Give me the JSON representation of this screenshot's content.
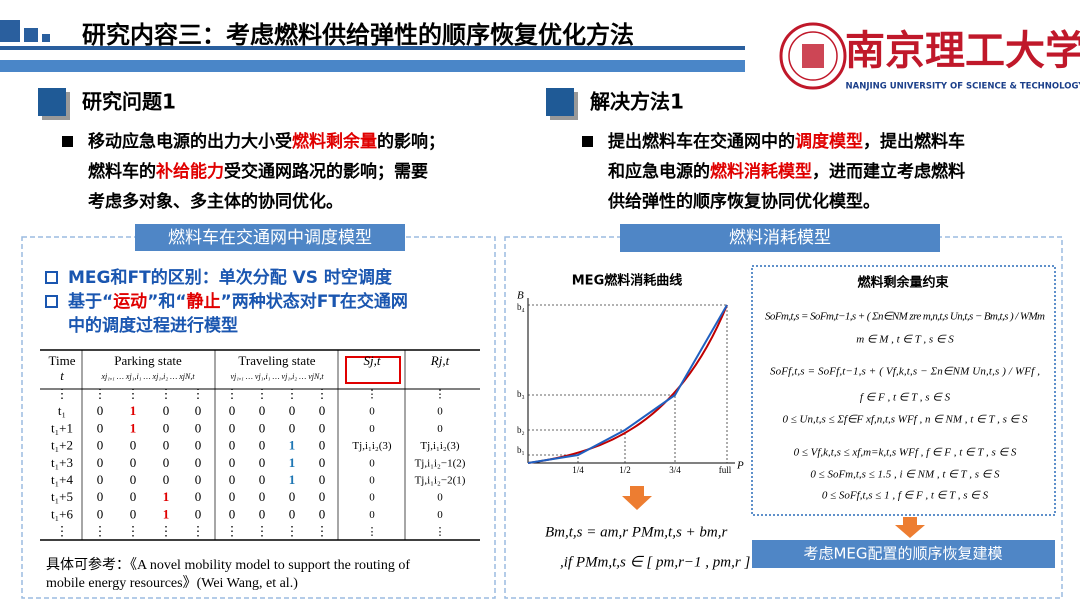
{
  "header": {
    "title": "研究内容三：考虑燃料供给弹性的顺序恢复优化方法",
    "university": "南京理工大学",
    "university_en": "NANJING UNIVERSITY OF SCIENCE & TECHNOLOGY"
  },
  "left": {
    "heading": "研究问题1",
    "bullet": [
      [
        {
          "text": "移动应急电源的出力大小受"
        },
        {
          "text": "燃料剩余量",
          "highlight": true
        },
        {
          "text": "的影响；"
        }
      ],
      [
        {
          "text": "燃料车的"
        },
        {
          "text": "补给能力",
          "highlight": true
        },
        {
          "text": "受交通网路况的影响；需要"
        }
      ],
      [
        {
          "text": "考虑多对象、多主体的协同优化。"
        }
      ]
    ],
    "panel_title": "燃料车在交通网中调度模型",
    "points": [
      [
        [
          {
            "text": "MEG和FT的区别：单次分配 VS 时空调度"
          }
        ]
      ],
      [
        [
          {
            "text": "基于“"
          },
          {
            "text": "运动",
            "highlight": true
          },
          {
            "text": "”和“"
          },
          {
            "text": "静止",
            "highlight": true
          },
          {
            "text": "”两种状态对FT在交通网"
          }
        ],
        [
          {
            "text": "中的调度过程进行模型"
          }
        ]
      ]
    ],
    "table": {
      "headers": [
        "Time",
        "Parking state",
        "Traveling state",
        "Sj,t",
        "Rj,t"
      ],
      "subheaders": [
        "t",
        "xj₁,₁ … xj₁,i₁ … xj₁,i₂ … xjN,t",
        "vj₁,₁ … vj₁,i₁ … vj₁,i₂ … vjN,t"
      ],
      "rows": [
        [
          "⋮",
          "⋮",
          "⋮",
          "⋮",
          "⋮",
          "⋮",
          "⋮",
          "⋮",
          "⋮",
          "⋮",
          "⋮"
        ],
        [
          "t₁",
          "0",
          {
            "text": "1",
            "color": "#e00000"
          },
          "0",
          "0",
          "0",
          "0",
          "0",
          "0",
          "0",
          "0"
        ],
        [
          "t₁+1",
          "0",
          {
            "text": "1",
            "color": "#e00000"
          },
          "0",
          "0",
          "0",
          "0",
          "0",
          "0",
          "0",
          "0"
        ],
        [
          "t₁+2",
          "0",
          "0",
          "0",
          "0",
          "0",
          "0",
          {
            "text": "1",
            "color": "#1f77b4"
          },
          "0",
          "Tj,i₁i₂(3)",
          "Tj,i₁i₂(3)"
        ],
        [
          "t₁+3",
          "0",
          "0",
          "0",
          "0",
          "0",
          "0",
          {
            "text": "1",
            "color": "#1f77b4"
          },
          "0",
          "0",
          "Tj,i₁i₂−1(2)"
        ],
        [
          "t₁+4",
          "0",
          "0",
          "0",
          "0",
          "0",
          "0",
          {
            "text": "1",
            "color": "#1f77b4"
          },
          "0",
          "0",
          "Tj,i₁i₂−2(1)"
        ],
        [
          "t₁+5",
          "0",
          "0",
          {
            "text": "1",
            "color": "#e00000"
          },
          "0",
          "0",
          "0",
          "0",
          "0",
          "0",
          "0"
        ],
        [
          "t₁+6",
          "0",
          "0",
          {
            "text": "1",
            "color": "#e00000"
          },
          "0",
          "0",
          "0",
          "0",
          "0",
          "0",
          "0"
        ],
        [
          "⋮",
          "⋮",
          "⋮",
          "⋮",
          "⋮",
          "⋮",
          "⋮",
          "⋮",
          "⋮",
          "⋮",
          "⋮"
        ]
      ]
    },
    "reference": [
      "具体可参考：《A novel mobility model to support the routing of",
      "mobile energy resources》(Wei Wang, et al.)"
    ]
  },
  "right": {
    "heading": "解决方法1",
    "bullet": [
      [
        {
          "text": "提出燃料车在交通网中的"
        },
        {
          "text": "调度模型",
          "highlight": true
        },
        {
          "text": "，提出燃料车"
        }
      ],
      [
        {
          "text": "和应急电源的"
        },
        {
          "text": "燃料消耗模型",
          "highlight": true
        },
        {
          "text": "，进而建立考虑燃料"
        }
      ],
      [
        {
          "text": "供给弹性的顺序恢复协同优化模型。"
        }
      ]
    ],
    "panel_title": "燃料消耗模型",
    "curve": {
      "title": "MEG燃料消耗曲线",
      "y_label": "B",
      "x_label": "P",
      "y_labels": [
        "b₁",
        "b₂",
        "b₃",
        "b₄"
      ],
      "x_labels": [
        "1/4",
        "1/2",
        "3/4",
        "full"
      ]
    },
    "formula": [
      "Bm,t,s = am,r PMm,t,s + bm,r",
      ",if  PMm,t,s ∈ [ pm,r−1 , pm,r ]"
    ],
    "constraints": {
      "title": "燃料剩余量约束",
      "lines": [
        "SoFm,t,s = SoFm,t−1,s + ( Σn∈NM zre m,n,t,s Un,t,s − Bm,t,s ) / WMm",
        "m ∈ M , t ∈ T , s ∈ S",
        "SoFf,t,s = SoFf,t−1,s + ( Vf,k,t,s − Σn∈NM Un,t,s ) / WFf ,",
        "f ∈ F , t ∈ T , s ∈ S",
        "0 ≤ Un,t,s ≤ Σf∈F xf,n,t,s WFf , n ∈ NM , t ∈ T , s ∈ S",
        "0 ≤ Vf,k,t,s ≤ xf,m=k,t,s WFf , f ∈ F , t ∈ T , s ∈ S",
        "0 ≤ SoFm,t,s ≤ 1.5 , i ∈ NM , t ∈ T , s ∈ S",
        "0 ≤ SoFf,t,s ≤ 1 , f ∈ F , t ∈ T , s ∈ S"
      ]
    },
    "conclusion": "考虑MEG配置的顺序恢复建模"
  }
}
